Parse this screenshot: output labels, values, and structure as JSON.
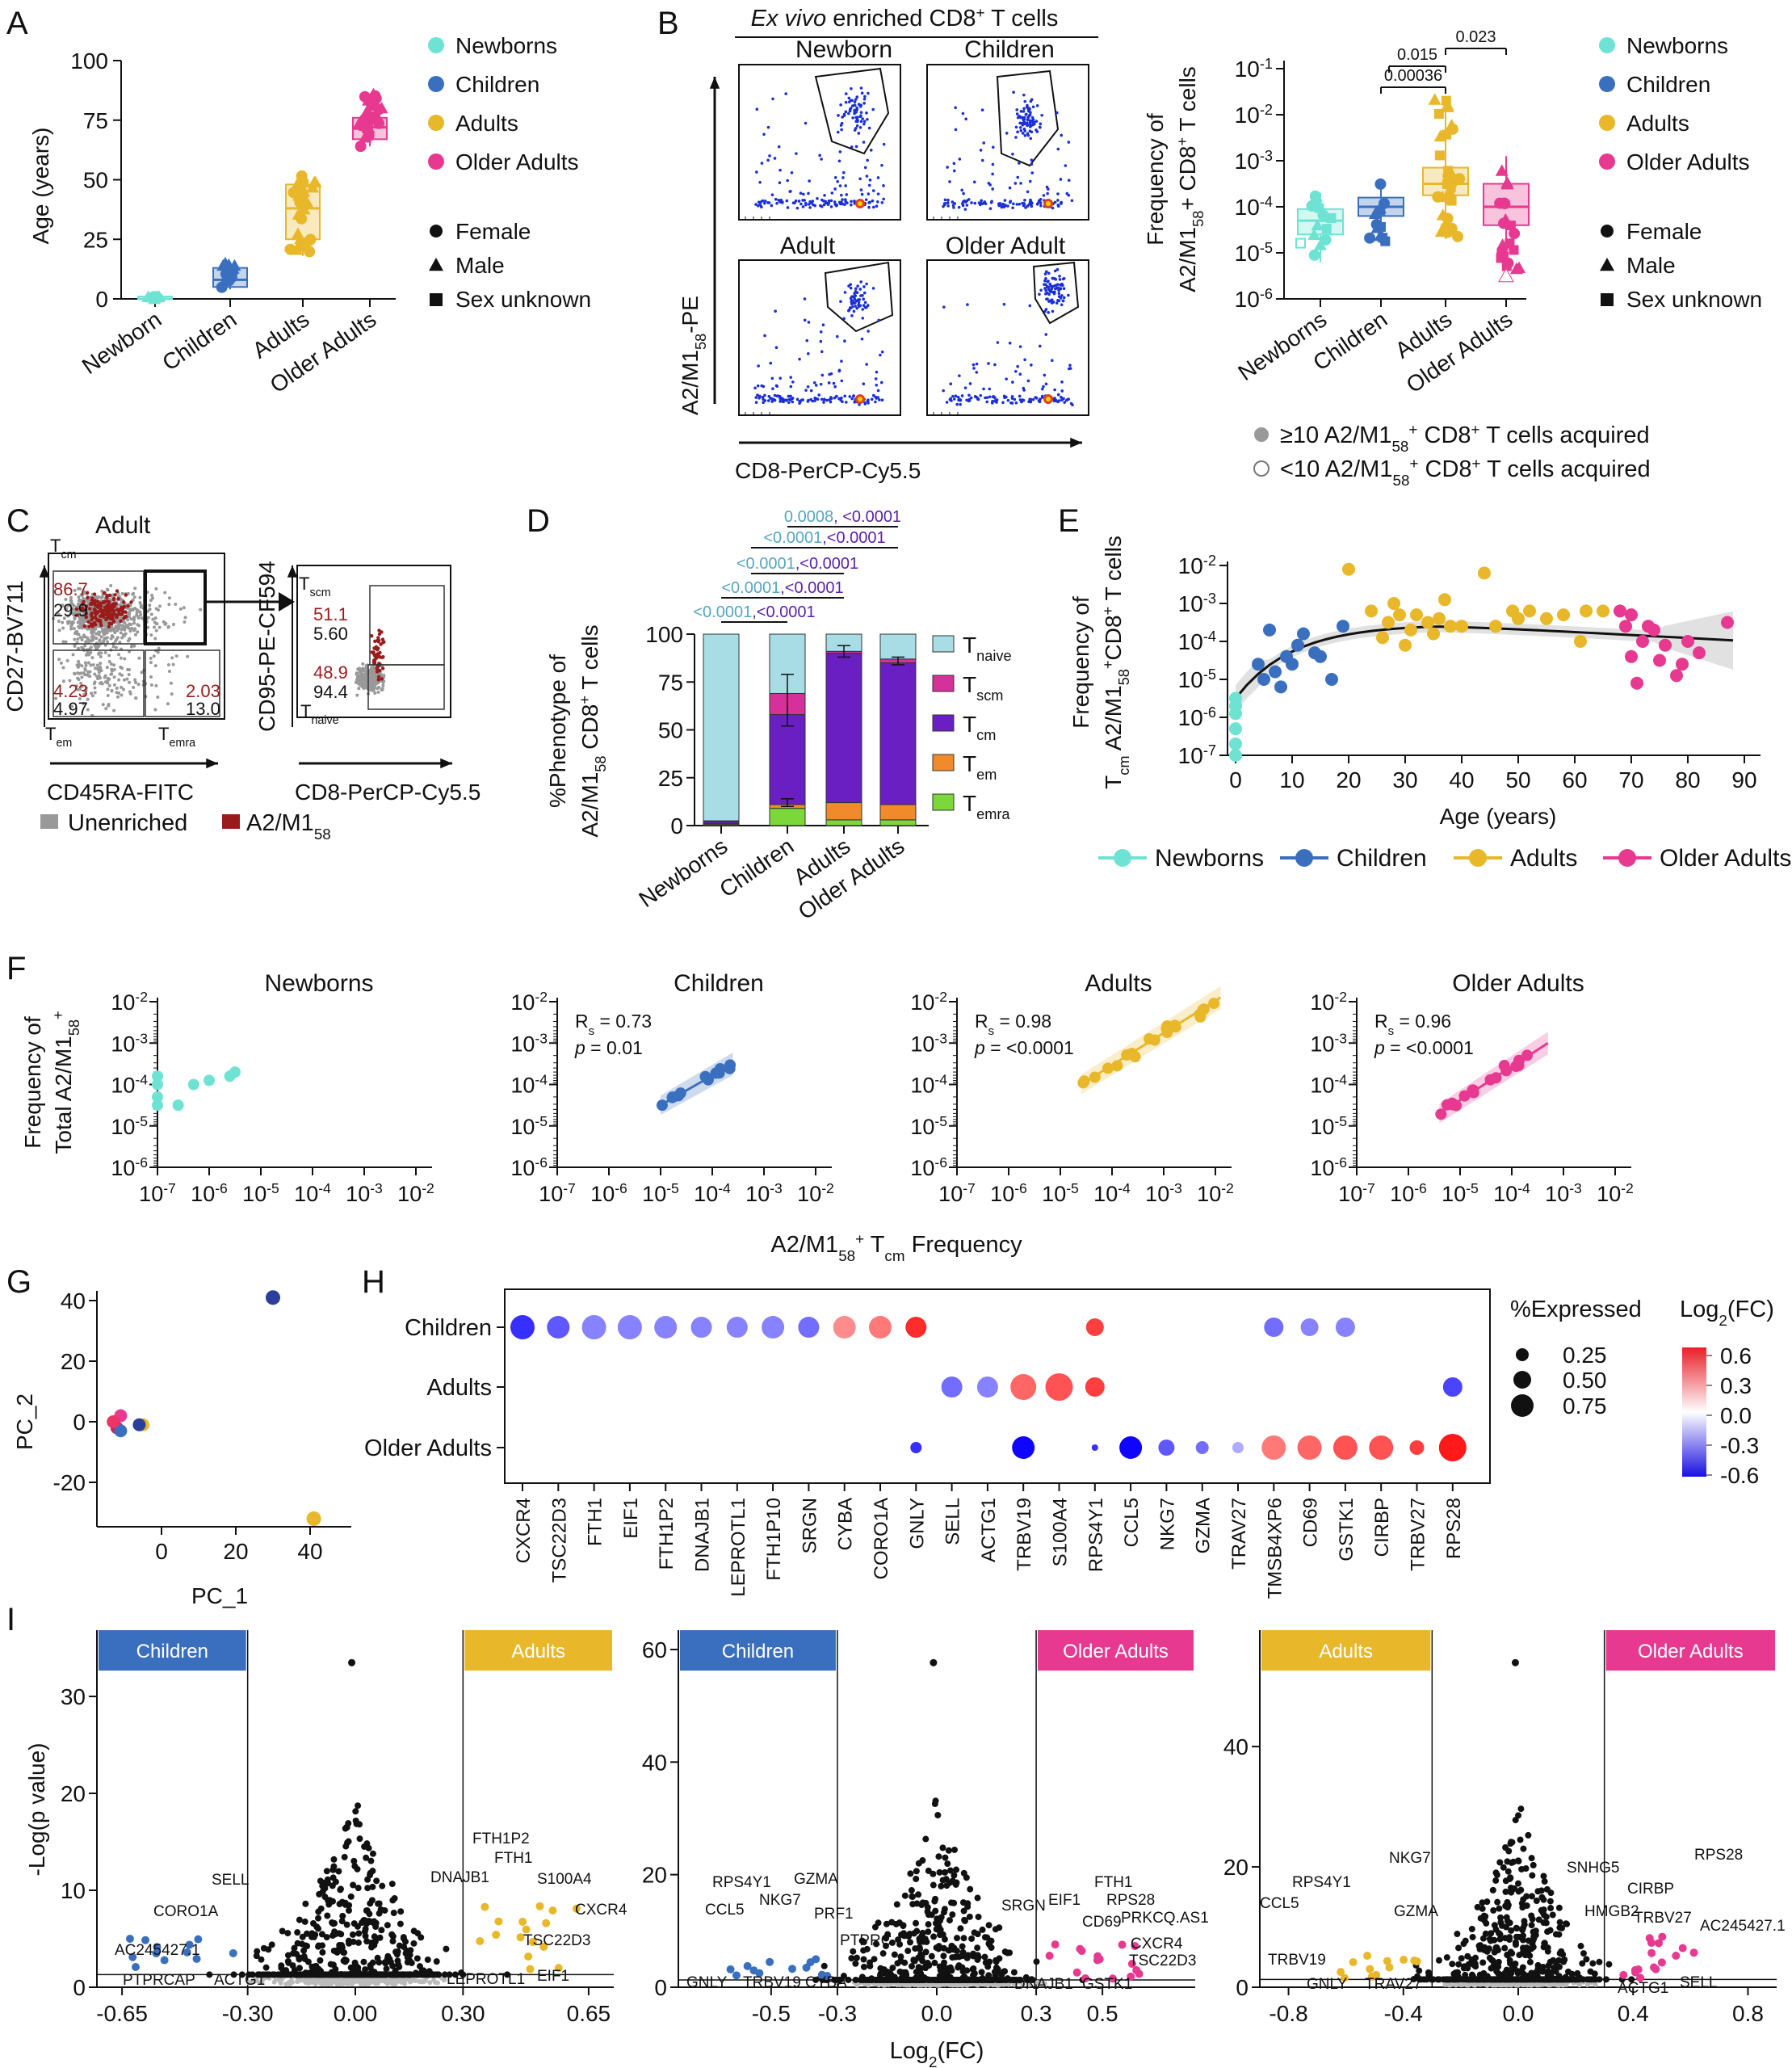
{
  "panel_letters": [
    "A",
    "B",
    "C",
    "D",
    "E",
    "F",
    "G",
    "H",
    "I"
  ],
  "colors": {
    "newborns": "#6fe3d3",
    "children": "#3a6fbf",
    "adults": "#e8b72a",
    "older": "#e6398f",
    "naive": "#a8dde6",
    "scm": "#d6319a",
    "cm": "#6a1fc2",
    "em": "#f08a2a",
    "emra": "#7cd83a",
    "enriched_dot": "#1a2fd6",
    "unenriched": "#999999",
    "a2m158": "#9b1b1b"
  },
  "groups": [
    "Newborns",
    "Children",
    "Adults",
    "Older Adults"
  ],
  "sex_legend": [
    "Female",
    "Male",
    "Sex unknown"
  ],
  "panelA": {
    "ylabel": "Age (years)",
    "yticks": [
      "0",
      "25",
      "50",
      "75",
      "100"
    ],
    "xticks": [
      "Newborn",
      "Children",
      "Adults",
      "Older Adults"
    ]
  },
  "panelB": {
    "title_italic": "Ex vivo",
    "title_rest": " enriched CD8",
    "title_sup": "+",
    "title_end": " T cells",
    "plot_labels": [
      "Newborn",
      "Children",
      "Adult",
      "Older Adult"
    ],
    "yaxis": "A2/M1",
    "yaxis_sub": "58",
    "yaxis_end": "-PE",
    "xaxis": "CD8-PerCP-Cy5.5",
    "box_ylabel_1": "Frequency of",
    "box_ylabel_2": "A2/M1",
    "box_ylabel_sub": "58",
    "box_ylabel_end": "+ CD8+ T cells",
    "yticks": [
      "10",
      "10",
      "10",
      "10",
      "10",
      "10"
    ],
    "yexps": [
      "-1",
      "-2",
      "-3",
      "-4",
      "-5",
      "-6"
    ],
    "xticks": [
      "Newborns",
      "Children",
      "Adults",
      "Older Adults"
    ],
    "pvals": [
      "0.00036",
      "0.015",
      "0.023"
    ],
    "acq_legend_1": "≥10 A2/M1",
    "acq_legend_2": "<10 A2/M1",
    "acq_sub": "58",
    "acq_end": "+ CD8+ T cells acquired"
  },
  "panelC": {
    "title": "Adult",
    "yaxis1": "CD27-BV711",
    "xaxis1": "CD45RA-FITC",
    "yaxis2": "CD95-PE-CF594",
    "xaxis2": "CD8-PerCP-Cy5.5",
    "q_tcm": [
      "86.7",
      "29.9"
    ],
    "q_tem": [
      "4.23",
      "4.97"
    ],
    "q_temra": [
      "2.03",
      "13.0"
    ],
    "q_tscm": [
      "51.1",
      "5.60"
    ],
    "q_tnaive": [
      "48.9",
      "94.4"
    ],
    "lab_tcm": "T",
    "lab_tcm_sub": "cm",
    "lab_tem": "T",
    "lab_tem_sub": "em",
    "lab_temra": "T",
    "lab_temra_sub": "emra",
    "lab_tscm": "T",
    "lab_tscm_sub": "scm",
    "lab_tnaive": "T",
    "lab_tnaive_sub": "naive",
    "legend": [
      "Unenriched",
      "A2/M1"
    ],
    "legend_sub": "58"
  },
  "panelD": {
    "ylabel_1": "%Phenotype of",
    "ylabel_2": "A2/M1",
    "ylabel_sub": "58",
    "ylabel_end": " CD8+ T cells",
    "yticks": [
      "0",
      "25",
      "50",
      "75",
      "100"
    ],
    "xticks": [
      "Newborns",
      "Children",
      "Adults",
      "Older Adults"
    ],
    "legend": [
      "naive",
      "scm",
      "cm",
      "em",
      "emra"
    ],
    "pvals": [
      [
        "0.0008",
        ", <0.0001"
      ],
      [
        "<0.0001",
        ",<0.0001"
      ],
      [
        "<0.0001",
        ",<0.0001"
      ],
      [
        "<0.0001",
        ",<0.0001"
      ],
      [
        "<0.0001",
        ",<0.0001"
      ]
    ]
  },
  "panelE": {
    "ylabel_1": "Frequency of",
    "ylabel_2": " A2/M1",
    "ylabel_sub": "58",
    "ylabel_end": "+CD8+ T cells",
    "xlabel": "Age (years)",
    "xticks": [
      "0",
      "10",
      "20",
      "30",
      "40",
      "50",
      "60",
      "70",
      "80",
      "90"
    ],
    "yexps": [
      "-2",
      "-3",
      "-4",
      "-5",
      "-6",
      "-7"
    ],
    "legend": [
      "Newborns",
      "Children",
      "Adults",
      "Older Adults"
    ]
  },
  "panelF": {
    "titles": [
      "Newborns",
      "Children",
      "Adults",
      "Older Adults"
    ],
    "stats": [
      [],
      [
        "0.73",
        "0.01"
      ],
      [
        "0.98",
        "<0.0001"
      ],
      [
        "0.96",
        "<0.0001"
      ]
    ],
    "ylabel_1": "Frequency of",
    "ylabel_2": "Total A2/M1",
    "ylabel_sub": "58",
    "xlabel": "A2/M1",
    "xlabel_sub": "58",
    "xlabel_end": " Frequency",
    "yexps": [
      "-2",
      "-3",
      "-4",
      "-5",
      "-6"
    ],
    "xexps": [
      "-7",
      "-6",
      "-5",
      "-4",
      "-3",
      "-2"
    ]
  },
  "panelG": {
    "xlabel": "PC_1",
    "ylabel": "PC_2",
    "xticks": [
      "0",
      "20",
      "40"
    ],
    "yticks": [
      "40",
      "20",
      "0",
      "-20"
    ]
  },
  "panelH": {
    "rows": [
      "Children",
      "Adults",
      "Older Adults"
    ],
    "genes": [
      "CXCR4",
      "TSC22D3",
      "FTH1",
      "EIF1",
      "FTH1P2",
      "DNAJB1",
      "LEPROTL1",
      "FTH1P10",
      "SRGN",
      "CYBA",
      "CORO1A",
      "GNLY",
      "SELL",
      "ACTG1",
      "TRBV19",
      "S100A4",
      "RPS4Y1",
      "CCL5",
      "NKG7",
      "GZMA",
      "TRAV27",
      "TMSB4XP6",
      "CD69",
      "GSTK1",
      "CIRBP",
      "TRBV27",
      "RPS28"
    ],
    "size_legend_title": "%Expressed",
    "size_legend": [
      "0.25",
      "0.50",
      "0.75"
    ],
    "color_legend_title": "Log",
    "color_legend_title_sub": "2",
    "color_legend_title_end": "(FC)",
    "color_ticks": [
      "0.6",
      "0.3",
      "0.0",
      "-0.3",
      "-0.6"
    ]
  },
  "panelI": {
    "ylabel": "-Log(p value)",
    "xlabel": "Log",
    "xlabel_sub": "2",
    "xlabel_end": "(FC)",
    "plots": [
      {
        "left": "Children",
        "right": "Adults",
        "yticks": [
          "0",
          "10",
          "20",
          "30"
        ],
        "xticks": [
          "-0.65",
          "-0.30",
          "0.00",
          "0.30",
          "0.65"
        ],
        "labels": [
          "SELL",
          "CORO1A",
          "AC245427.1",
          "PTPRCAP",
          "ACTG1",
          "FTH1P2",
          "FTH1",
          "DNAJB1",
          "S100A4",
          "CXCR4",
          "TSC22D3",
          "LEPROTL1",
          "EIF1"
        ]
      },
      {
        "left": "Children",
        "right": "Older Adults",
        "yticks": [
          "0",
          "20",
          "40",
          "60"
        ],
        "xticks": [
          "-0.5",
          "-0.3",
          "0.0",
          "0.3",
          "0.5"
        ],
        "labels": [
          "RPS4Y1",
          "GZMA",
          "NKG7",
          "PRF1",
          "CCL5",
          "PTPRC",
          "GNLY",
          "TRBV19",
          "CYBA",
          "FTH1",
          "SRGN",
          "EIF1",
          "RPS28",
          "CD69",
          "PRKCQ.AS1",
          "CXCR4",
          "TSC22D3",
          "DNAJB1",
          "GSTK1"
        ]
      },
      {
        "left": "Adults",
        "right": "Older Adults",
        "yticks": [
          "0",
          "20",
          "40"
        ],
        "xticks": [
          "-0.8",
          "-0.4",
          "0.0",
          "0.4",
          "0.8"
        ],
        "labels": [
          "NKG7",
          "RPS4Y1",
          "CCL5",
          "GZMA",
          "TRBV19",
          "GNLY",
          "TRAV27",
          "SNHG5",
          "CIRBP",
          "HMGB2",
          "TRBV27",
          "RPS28",
          "AC245427.1",
          "ACTG1",
          "SELL"
        ]
      }
    ]
  }
}
